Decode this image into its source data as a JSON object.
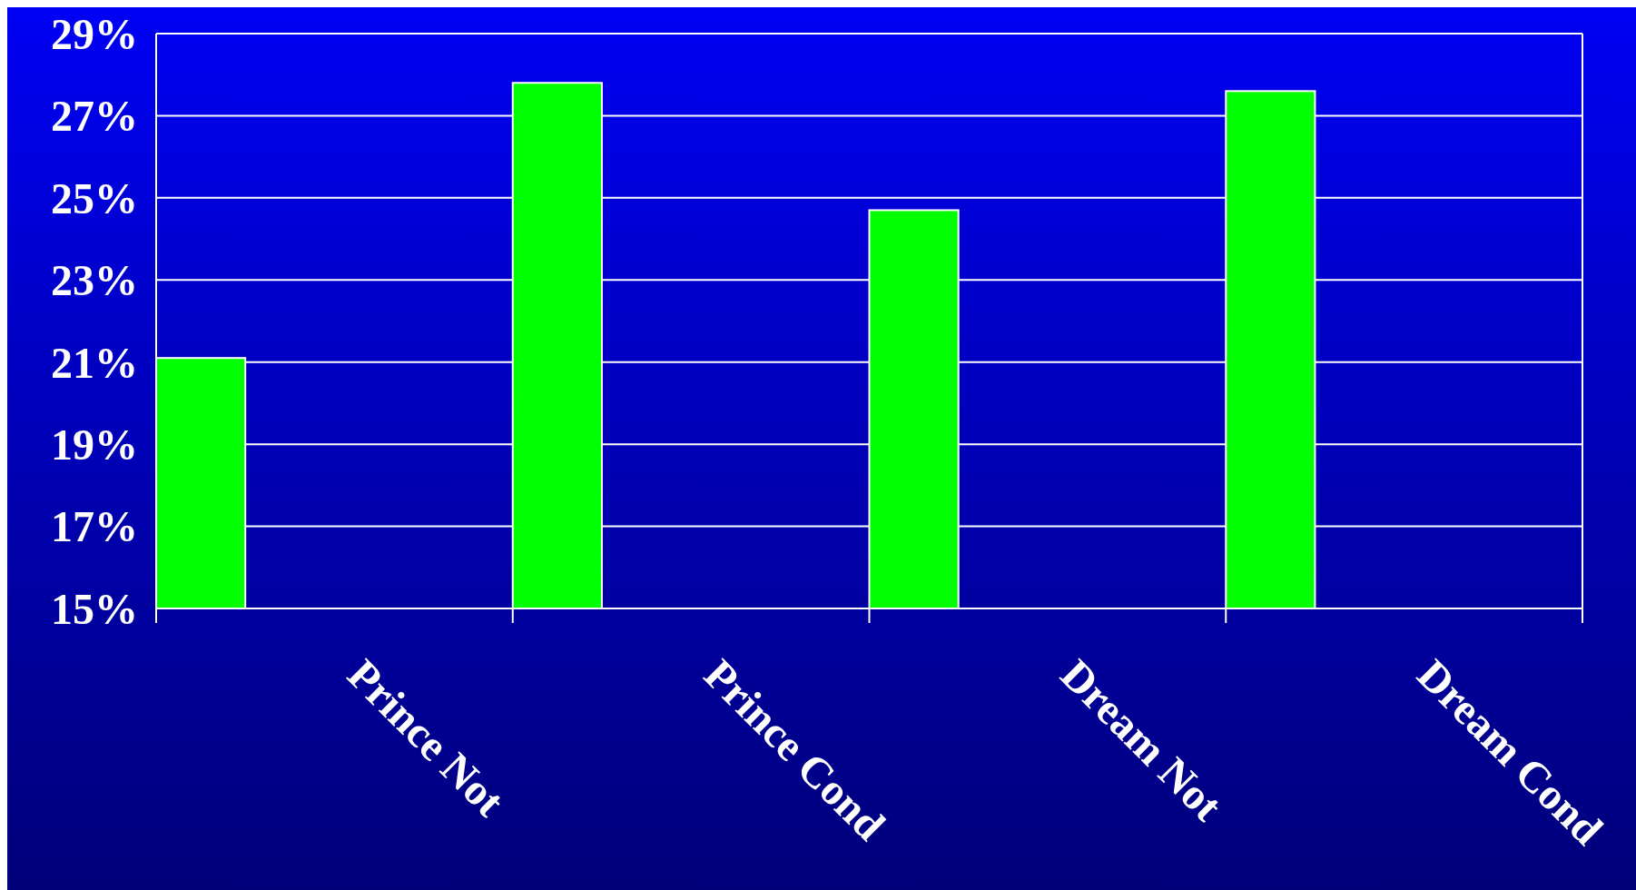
{
  "chart_data": {
    "type": "bar",
    "categories": [
      "Prince Not",
      "Prince Cond",
      "Dream Not",
      "Dream Cond"
    ],
    "values": [
      21.1,
      27.8,
      24.7,
      27.6
    ],
    "color": "#00ff00",
    "ylim": [
      15,
      29
    ],
    "yticks": [
      {
        "value": 15,
        "label": "15%"
      },
      {
        "value": 17,
        "label": "17%"
      },
      {
        "value": 19,
        "label": "19%"
      },
      {
        "value": 21,
        "label": "21%"
      },
      {
        "value": 23,
        "label": "23%"
      },
      {
        "value": 25,
        "label": "25%"
      },
      {
        "value": 27,
        "label": "27%"
      },
      {
        "value": 29,
        "label": "29%"
      }
    ],
    "grid": "y"
  }
}
